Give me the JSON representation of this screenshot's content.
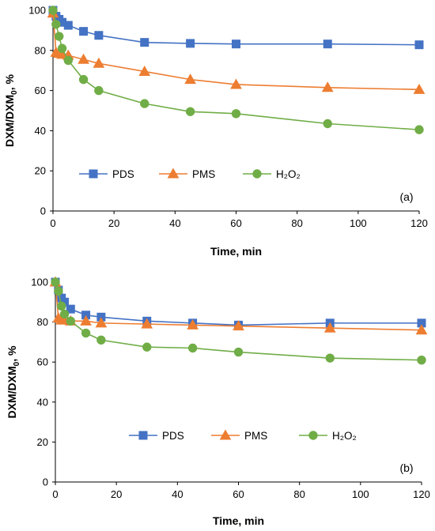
{
  "chart_data": [
    {
      "type": "line",
      "panel_label": "(a)",
      "xlabel": "Time, min",
      "ylabel_main": "DXM/DXM",
      "ylabel_sub": "0",
      "ylabel_suffix": ", %",
      "xlim": [
        0,
        120
      ],
      "ylim": [
        0,
        100
      ],
      "xticks": [
        0,
        20,
        40,
        60,
        80,
        100,
        120
      ],
      "yticks": [
        0,
        20,
        40,
        60,
        80,
        100
      ],
      "grid": false,
      "legend_position": "bottom-left",
      "series": [
        {
          "name": "PDS",
          "marker": "square",
          "color": "#4472C4",
          "x": [
            0,
            1,
            2,
            3,
            5,
            10,
            15,
            30,
            45,
            60,
            90,
            120
          ],
          "y": [
            100,
            97,
            95.5,
            94,
            92.5,
            89.5,
            87.5,
            84,
            83.5,
            83.2,
            83.2,
            82.8
          ]
        },
        {
          "name": "PMS",
          "marker": "triangle",
          "color": "#ED7D31",
          "x": [
            0,
            1,
            2,
            3,
            5,
            10,
            15,
            30,
            45,
            60,
            90,
            120
          ],
          "y": [
            98.5,
            79,
            78.5,
            78,
            77.5,
            75.5,
            73.5,
            69.5,
            65.5,
            63,
            61.5,
            60.5
          ]
        },
        {
          "name": "H₂O₂",
          "marker": "circle",
          "color": "#70AD47",
          "x": [
            0,
            1,
            2,
            3,
            5,
            10,
            15,
            30,
            45,
            60,
            90,
            120
          ],
          "y": [
            100,
            93,
            87,
            81,
            75,
            65.5,
            60,
            53.5,
            49.5,
            48.5,
            43.5,
            40.5
          ]
        }
      ]
    },
    {
      "type": "line",
      "panel_label": "(b)",
      "xlabel": "Time, min",
      "ylabel_main": "DXM/DXM",
      "ylabel_sub": "0",
      "ylabel_suffix": ", %",
      "xlim": [
        0,
        120
      ],
      "ylim": [
        0,
        100
      ],
      "xticks": [
        0,
        20,
        40,
        60,
        80,
        100,
        120
      ],
      "yticks": [
        0,
        20,
        40,
        60,
        80,
        100
      ],
      "grid": false,
      "legend_position": "bottom-center",
      "series": [
        {
          "name": "PDS",
          "marker": "square",
          "color": "#4472C4",
          "x": [
            0,
            1,
            2,
            3,
            5,
            10,
            15,
            30,
            45,
            60,
            90,
            120
          ],
          "y": [
            100,
            96,
            92,
            90,
            86.5,
            83.5,
            82.5,
            80.5,
            79.5,
            78.5,
            79.5,
            79.5
          ]
        },
        {
          "name": "PMS",
          "marker": "triangle",
          "color": "#ED7D31",
          "x": [
            0,
            1,
            2,
            3,
            5,
            10,
            15,
            30,
            45,
            60,
            90,
            120
          ],
          "y": [
            100,
            82,
            81,
            81,
            80.5,
            80.5,
            79.5,
            79,
            78.5,
            78,
            77,
            76
          ]
        },
        {
          "name": "H₂O₂",
          "marker": "circle",
          "color": "#70AD47",
          "x": [
            0,
            1,
            2,
            3,
            5,
            10,
            15,
            30,
            45,
            60,
            90,
            120
          ],
          "y": [
            100,
            95.5,
            88,
            84,
            80.5,
            74.5,
            71,
            67.5,
            67,
            65,
            62,
            61
          ]
        }
      ]
    }
  ]
}
